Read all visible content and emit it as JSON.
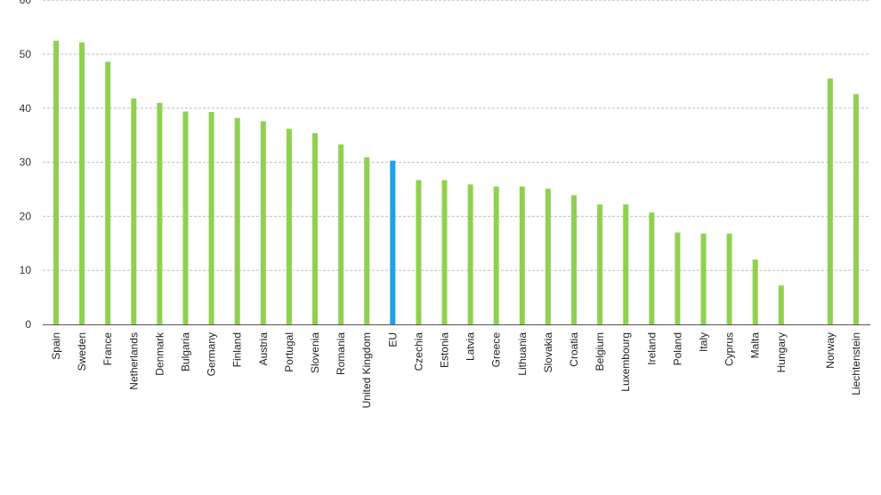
{
  "chart_data": {
    "type": "bar",
    "categories": [
      "Spain",
      "Sweden",
      "France",
      "Netherlands",
      "Denmark",
      "Bulgaria",
      "Germany",
      "Finland",
      "Austria",
      "Portugal",
      "Slovenia",
      "Romania",
      "United Kingdom",
      "EU",
      "Czechia",
      "Estonia",
      "Latvia",
      "Greece",
      "Lithuania",
      "Slovakia",
      "Croatia",
      "Belgium",
      "Luxembourg",
      "Ireland",
      "Poland",
      "Italy",
      "Cyprus",
      "Malta",
      "Hungary",
      "Norway",
      "Liechtenstein"
    ],
    "values": [
      52.5,
      52.2,
      48.6,
      41.8,
      41.0,
      39.4,
      39.3,
      38.2,
      37.6,
      36.2,
      35.4,
      33.3,
      30.9,
      30.3,
      26.7,
      26.7,
      25.9,
      25.5,
      25.5,
      25.1,
      23.9,
      22.2,
      22.2,
      20.7,
      17.0,
      16.8,
      16.8,
      12.0,
      7.2,
      45.5,
      42.6
    ],
    "highlight": "EU",
    "ylim": [
      0,
      60
    ],
    "yticks": [
      0,
      10,
      20,
      30,
      40,
      50,
      60
    ],
    "grid": true,
    "colors": {
      "bar": "#8fd14f",
      "highlight": "#1aa3e8",
      "grid": "#bdbdbd"
    }
  }
}
